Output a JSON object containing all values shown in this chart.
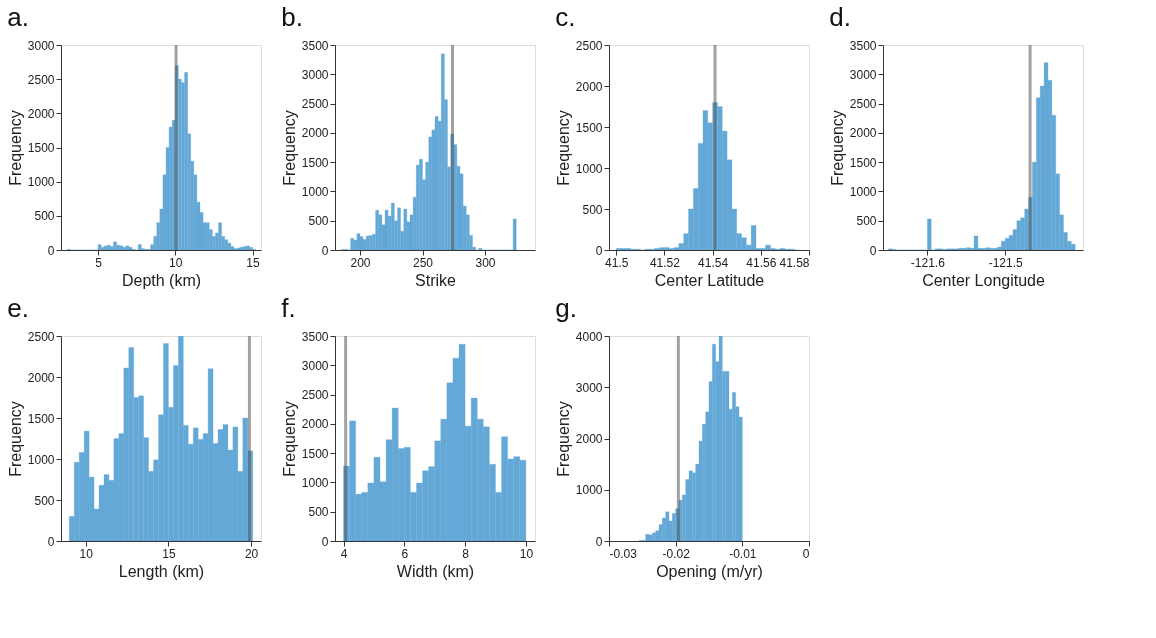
{
  "chart_data": [
    {
      "type": "histogram",
      "title": "a.",
      "xlabel": "Depth (km)",
      "ylabel": "Frequency",
      "color": "#63a8d6",
      "bins": [
        3,
        3.2,
        3.4,
        3.6,
        3.8,
        4,
        4.2,
        4.4,
        4.6,
        4.8,
        5,
        5.2,
        5.4,
        5.6,
        5.8,
        6,
        6.2,
        6.4,
        6.6,
        6.8,
        7,
        7.2,
        7.4,
        7.6,
        7.8,
        8,
        8.2,
        8.4,
        8.6,
        8.8,
        9,
        9.2,
        9.4,
        9.6,
        9.8,
        10,
        10.2,
        10.4,
        10.6,
        10.8,
        11,
        11.2,
        11.4,
        11.6,
        11.8,
        12,
        12.2,
        12.4,
        12.6,
        12.8,
        13,
        13.2,
        13.4,
        13.6,
        13.8,
        14,
        14.2,
        14.4,
        14.6,
        14.8,
        15,
        15.2
      ],
      "values": [
        10,
        0,
        0,
        0,
        0,
        0,
        0,
        0,
        0,
        0,
        80,
        40,
        60,
        70,
        50,
        120,
        70,
        60,
        40,
        60,
        40,
        10,
        0,
        80,
        20,
        10,
        10,
        80,
        200,
        400,
        600,
        1100,
        1500,
        1800,
        1900,
        2700,
        2500,
        2450,
        2600,
        1700,
        1300,
        1100,
        700,
        550,
        400,
        400,
        300,
        200,
        250,
        400,
        200,
        150,
        100,
        50,
        20,
        30,
        40,
        50,
        60,
        40,
        10
      ],
      "xlim": [
        2.6,
        15.55
      ],
      "xticks": [
        5,
        10,
        15
      ],
      "ylim": [
        0,
        3000
      ],
      "yticks": [
        0,
        500,
        1000,
        1500,
        2000,
        2500,
        3000
      ],
      "ref_lines": [
        {
          "axis": "x",
          "value": 10.05,
          "color": "#555555"
        }
      ]
    },
    {
      "type": "histogram",
      "title": "b.",
      "xlabel": "Strike",
      "ylabel": "Frequency",
      "color": "#63a8d6",
      "bins": [
        185,
        187.5,
        190,
        192.5,
        195,
        197.5,
        200,
        202.5,
        205,
        207.5,
        210,
        212.5,
        215,
        217.5,
        220,
        222.5,
        225,
        227.5,
        230,
        232.5,
        235,
        237.5,
        240,
        242.5,
        245,
        247.5,
        250,
        252.5,
        255,
        257.5,
        260,
        262.5,
        265,
        267.5,
        270,
        272.5,
        275,
        277.5,
        280,
        282.5,
        285,
        287.5,
        290,
        292.5,
        295,
        297.5,
        300,
        302.5,
        305,
        307.5,
        310,
        312.5,
        315,
        317.5,
        320,
        322.5,
        325
      ],
      "values": [
        10,
        10,
        0,
        200,
        170,
        280,
        230,
        180,
        240,
        250,
        270,
        680,
        600,
        430,
        680,
        580,
        800,
        500,
        720,
        320,
        700,
        480,
        600,
        900,
        1450,
        1550,
        1200,
        1500,
        1930,
        2050,
        2280,
        2200,
        3350,
        2570,
        1420,
        1980,
        1800,
        1430,
        1300,
        750,
        600,
        250,
        50,
        0,
        30,
        0,
        0,
        0,
        0,
        0,
        0,
        0,
        0,
        0,
        0,
        530
      ],
      "xlim": [
        180,
        340
      ],
      "xticks": [
        200,
        250,
        300
      ],
      "ylim": [
        0,
        3500
      ],
      "yticks": [
        0,
        500,
        1000,
        1500,
        2000,
        2500,
        3000,
        3500
      ],
      "ref_lines": [
        {
          "axis": "x",
          "value": 274,
          "color": "#555555"
        }
      ]
    },
    {
      "type": "histogram",
      "title": "c.",
      "xlabel": "Center Latitude",
      "ylabel": "Frequency",
      "color": "#63a8d6",
      "bins": [
        41.5,
        41.502,
        41.504,
        41.506,
        41.508,
        41.51,
        41.512,
        41.514,
        41.516,
        41.518,
        41.52,
        41.522,
        41.524,
        41.526,
        41.528,
        41.53,
        41.532,
        41.534,
        41.536,
        41.538,
        41.54,
        41.542,
        41.544,
        41.546,
        41.548,
        41.55,
        41.552,
        41.554,
        41.556,
        41.558,
        41.56,
        41.562,
        41.564,
        41.566,
        41.568,
        41.57,
        41.572,
        41.574,
        41.576
      ],
      "values": [
        20,
        20,
        20,
        10,
        10,
        0,
        10,
        10,
        20,
        30,
        30,
        20,
        30,
        80,
        200,
        500,
        750,
        1300,
        1700,
        1550,
        1800,
        1750,
        1450,
        1100,
        500,
        200,
        150,
        60,
        300,
        20,
        20,
        60,
        20,
        10,
        20,
        10,
        10,
        0
      ],
      "xlim": [
        41.497,
        41.58
      ],
      "xticks": [
        41.5,
        41.52,
        41.54,
        41.56,
        41.58
      ],
      "ylim": [
        0,
        2500
      ],
      "yticks": [
        0,
        500,
        1000,
        1500,
        2000,
        2500
      ],
      "ref_lines": [
        {
          "axis": "x",
          "value": 41.541,
          "color": "#555555"
        }
      ]
    },
    {
      "type": "histogram",
      "title": "d.",
      "xlabel": "Center Longitude",
      "ylabel": "Frequency",
      "color": "#63a8d6",
      "bins": [
        -121.65,
        -121.645,
        -121.64,
        -121.635,
        -121.63,
        -121.625,
        -121.62,
        -121.615,
        -121.61,
        -121.605,
        -121.6,
        -121.595,
        -121.59,
        -121.585,
        -121.58,
        -121.575,
        -121.57,
        -121.565,
        -121.56,
        -121.555,
        -121.55,
        -121.545,
        -121.54,
        -121.535,
        -121.53,
        -121.525,
        -121.52,
        -121.515,
        -121.51,
        -121.505,
        -121.5,
        -121.495,
        -121.49,
        -121.485,
        -121.48,
        -121.475,
        -121.47,
        -121.465,
        -121.46,
        -121.455,
        -121.45,
        -121.445,
        -121.44,
        -121.435,
        -121.43,
        -121.425,
        -121.42,
        -121.415,
        -121.41
      ],
      "values": [
        20,
        10,
        0,
        0,
        0,
        0,
        0,
        0,
        0,
        0,
        530,
        0,
        20,
        20,
        10,
        20,
        20,
        20,
        30,
        30,
        40,
        30,
        240,
        30,
        30,
        40,
        30,
        30,
        50,
        150,
        200,
        250,
        350,
        500,
        550,
        700,
        900,
        1500,
        2600,
        2800,
        3200,
        2900,
        2300,
        1300,
        600,
        300,
        150,
        100
      ],
      "xlim": [
        -121.657,
        -121.4
      ],
      "xticks": [
        -121.6,
        -121.5
      ],
      "ylim": [
        0,
        3500
      ],
      "yticks": [
        0,
        500,
        1000,
        1500,
        2000,
        2500,
        3000,
        3500
      ],
      "ref_lines": [
        {
          "axis": "x",
          "value": -121.468,
          "color": "#555555"
        }
      ]
    },
    {
      "type": "histogram",
      "title": "e.",
      "xlabel": "Length (km)",
      "ylabel": "Frequency",
      "color": "#63a8d6",
      "bins": [
        9,
        9.3,
        9.6,
        9.9,
        10.2,
        10.5,
        10.8,
        11.1,
        11.4,
        11.7,
        12,
        12.3,
        12.6,
        12.9,
        13.2,
        13.5,
        13.8,
        14.1,
        14.4,
        14.7,
        15,
        15.3,
        15.6,
        15.9,
        16.2,
        16.5,
        16.8,
        17.1,
        17.4,
        17.7,
        18,
        18.3,
        18.6,
        18.9,
        19.2,
        19.5,
        19.8,
        20.1
      ],
      "values": [
        300,
        960,
        1080,
        1340,
        780,
        390,
        680,
        810,
        740,
        1250,
        1310,
        2110,
        2360,
        1750,
        1770,
        1260,
        850,
        990,
        1540,
        2410,
        1630,
        2140,
        2500,
        1410,
        1180,
        1380,
        1240,
        1310,
        2100,
        1190,
        1360,
        1420,
        1110,
        1390,
        850,
        1500,
        1100
      ],
      "xlim": [
        8.5,
        20.6
      ],
      "xticks": [
        10,
        15,
        20
      ],
      "ylim": [
        0,
        2500
      ],
      "yticks": [
        0,
        500,
        1000,
        1500,
        2000,
        2500
      ],
      "ref_lines": [
        {
          "axis": "x",
          "value": 19.9,
          "color": "#555555"
        }
      ]
    },
    {
      "type": "histogram",
      "title": "f.",
      "xlabel": "Width (km)",
      "ylabel": "Frequency",
      "color": "#63a8d6",
      "bins": [
        4,
        4.2,
        4.4,
        4.6,
        4.8,
        5,
        5.2,
        5.4,
        5.6,
        5.8,
        6,
        6.2,
        6.4,
        6.6,
        6.8,
        7,
        7.2,
        7.4,
        7.6,
        7.8,
        8,
        8.2,
        8.4,
        8.6,
        8.8,
        9,
        9.2,
        9.4,
        9.6,
        9.8,
        10
      ],
      "values": [
        1280,
        2050,
        800,
        830,
        990,
        1430,
        1010,
        1730,
        2270,
        1580,
        1600,
        830,
        990,
        1200,
        1270,
        1710,
        2080,
        2700,
        3120,
        3360,
        1960,
        2440,
        2080,
        1950,
        1310,
        830,
        1780,
        1400,
        1440,
        1380
      ],
      "xlim": [
        3.72,
        10.3
      ],
      "xticks": [
        4,
        6,
        8,
        10
      ],
      "ylim": [
        0,
        3500
      ],
      "yticks": [
        0,
        500,
        1000,
        1500,
        2000,
        2500,
        3000,
        3500
      ],
      "ref_lines": [
        {
          "axis": "x",
          "value": 4.07,
          "color": "#555555"
        }
      ]
    },
    {
      "type": "histogram",
      "title": "g.",
      "xlabel": "Opening (m/yr)",
      "ylabel": "Frequency",
      "color": "#63a8d6",
      "bins": [
        -0.0255,
        -0.025,
        -0.0245,
        -0.024,
        -0.0235,
        -0.023,
        -0.0225,
        -0.022,
        -0.0215,
        -0.021,
        -0.0205,
        -0.02,
        -0.0195,
        -0.019,
        -0.0185,
        -0.018,
        -0.0175,
        -0.017,
        -0.0165,
        -0.016,
        -0.0155,
        -0.015,
        -0.0145,
        -0.014,
        -0.0135,
        -0.013,
        -0.0125,
        -0.012,
        -0.0115,
        -0.011,
        -0.0105,
        -0.01
      ],
      "values": [
        10,
        10,
        130,
        120,
        160,
        200,
        320,
        450,
        570,
        390,
        540,
        630,
        800,
        900,
        1200,
        1370,
        1330,
        1500,
        1950,
        2280,
        2520,
        3110,
        3840,
        3500,
        4000,
        3310,
        3310,
        2570,
        2900,
        2620,
        2420
      ],
      "xlim": [
        -0.03,
        0
      ],
      "xticks": [
        -0.03,
        -0.02,
        -0.01,
        0
      ],
      "ylim": [
        0,
        4000
      ],
      "yticks": [
        0,
        1000,
        2000,
        3000,
        4000
      ],
      "ref_lines": [
        {
          "axis": "x",
          "value": -0.0196,
          "color": "#555555"
        }
      ]
    }
  ]
}
